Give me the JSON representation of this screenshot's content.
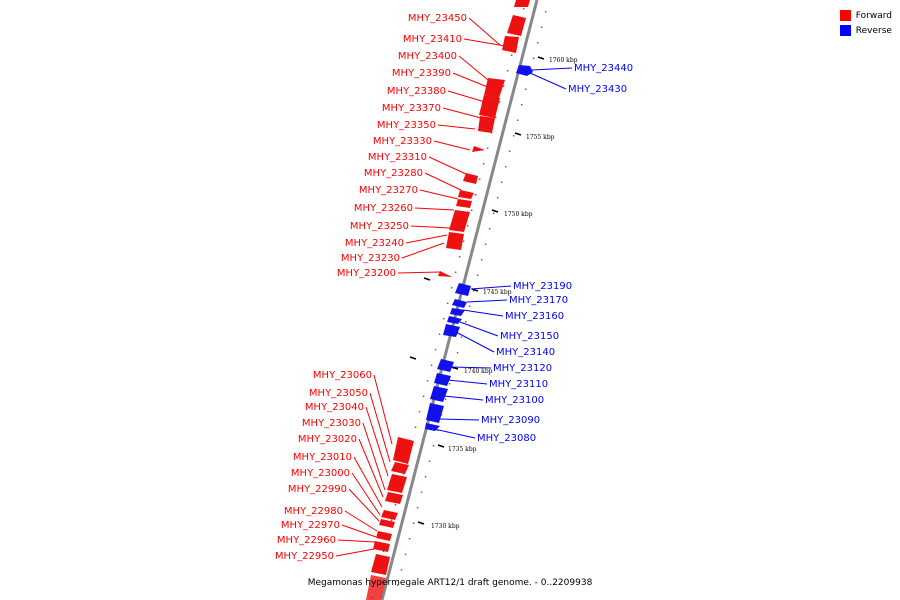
{
  "title": "Megamonas hypermegale ART12/1 draft genome. - 0..2209938",
  "legend": {
    "forward_label": "Forward",
    "reverse_label": "Reverse",
    "forward_color": "#ff0000",
    "reverse_color": "#0000ff"
  },
  "ticks": [
    "1760 kbp",
    "1755 kbp",
    "1750 kbp",
    "1745 kbp",
    "1740 kbp",
    "1735 kbp",
    "1730 kbp"
  ],
  "forward_genes": [
    "MHY_23450",
    "MHY_23410",
    "MHY_23400",
    "MHY_23390",
    "MHY_23380",
    "MHY_23370",
    "MHY_23350",
    "MHY_23330",
    "MHY_23310",
    "MHY_23280",
    "MHY_23270",
    "MHY_23260",
    "MHY_23250",
    "MHY_23240",
    "MHY_23230",
    "MHY_23200",
    "MHY_23060",
    "MHY_23050",
    "MHY_23040",
    "MHY_23030",
    "MHY_23020",
    "MHY_23010",
    "MHY_23000",
    "MHY_22990",
    "MHY_22980",
    "MHY_22970",
    "MHY_22960",
    "MHY_22950"
  ],
  "reverse_genes": [
    "MHY_23440",
    "MHY_23430",
    "MHY_23190",
    "MHY_23170",
    "MHY_23160",
    "MHY_23150",
    "MHY_23140",
    "MHY_23120",
    "MHY_23110",
    "MHY_23100",
    "MHY_23090",
    "MHY_23080"
  ]
}
